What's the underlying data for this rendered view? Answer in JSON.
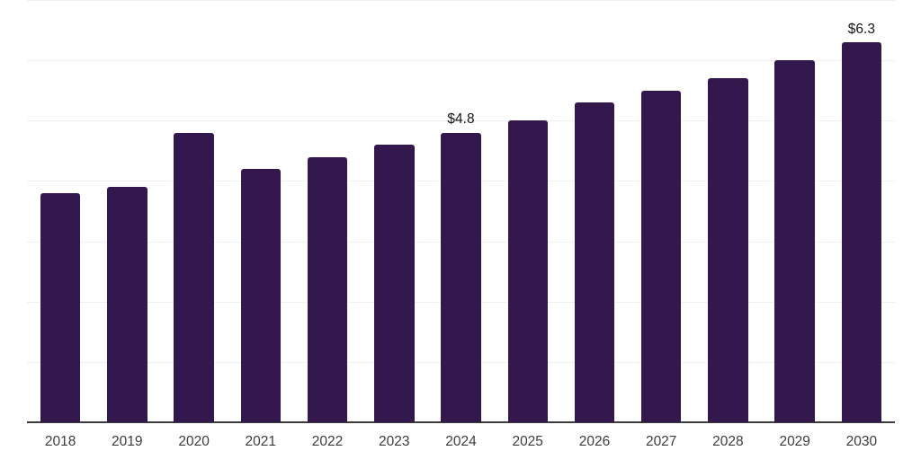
{
  "chart_data": {
    "type": "bar",
    "title": "",
    "xlabel": "",
    "ylabel": "",
    "categories": [
      "2018",
      "2019",
      "2020",
      "2021",
      "2022",
      "2023",
      "2024",
      "2025",
      "2026",
      "2027",
      "2028",
      "2029",
      "2030"
    ],
    "values": [
      3.8,
      3.9,
      4.8,
      4.2,
      4.4,
      4.6,
      4.8,
      5.0,
      5.3,
      5.5,
      5.7,
      6.0,
      6.3
    ],
    "value_labels": [
      "",
      "",
      "",
      "",
      "",
      "",
      "$4.8",
      "",
      "",
      "",
      "",
      "",
      "$6.3"
    ],
    "ylim": [
      0,
      7
    ],
    "gridline_step": 1,
    "grid": true,
    "legend": false,
    "y_axis_labels_visible": false,
    "colors": {
      "bar": "#33184e",
      "gridline": "#f0f0f1",
      "axis_line": "#3c3c3c",
      "tick_label": "#3d3d3d",
      "value_label": "#151515",
      "background": "#ffffff"
    }
  }
}
